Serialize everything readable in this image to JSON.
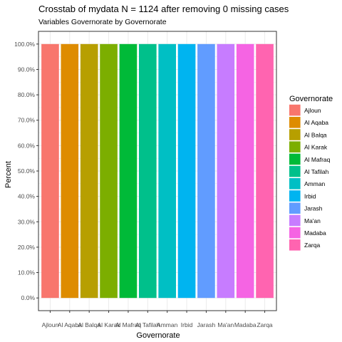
{
  "chart_data": {
    "type": "bar",
    "title": "Crosstab of mydata N = 1124 after removing 0 missing cases",
    "subtitle": "Variables Governorate by Governorate",
    "xlabel": "Governorate",
    "ylabel": "Percent",
    "categories": [
      "Ajloun",
      "Al Aqaba",
      "Al Balqa",
      "Al Karak",
      "Al Mafraq",
      "Al Tafilah",
      "Amman",
      "Irbid",
      "Jarash",
      "Ma'an",
      "Madaba",
      "Zarqa"
    ],
    "values": [
      100,
      100,
      100,
      100,
      100,
      100,
      100,
      100,
      100,
      100,
      100,
      100
    ],
    "ylim": [
      0,
      100
    ],
    "yticks": [
      0,
      10,
      20,
      30,
      40,
      50,
      60,
      70,
      80,
      90,
      100
    ],
    "ytick_labels": [
      "0.0%",
      "10.0%",
      "20.0%",
      "30.0%",
      "40.0%",
      "50.0%",
      "60.0%",
      "70.0%",
      "80.0%",
      "90.0%",
      "100.0%"
    ],
    "grid": true,
    "legend": {
      "title": "Governorate",
      "position": "right",
      "entries": [
        "Ajloun",
        "Al Aqaba",
        "Al Balqa",
        "Al Karak",
        "Al Mafraq",
        "Al Tafilah",
        "Amman",
        "Irbid",
        "Jarash",
        "Ma'an",
        "Madaba",
        "Zarqa"
      ]
    },
    "colors": [
      "#F8766D",
      "#DE8C00",
      "#B79F00",
      "#7CAE00",
      "#00BA38",
      "#00C08B",
      "#00BFC4",
      "#00B4F0",
      "#619CFF",
      "#C77CFF",
      "#F564E3",
      "#FF64B0"
    ],
    "panel_background": "#ffffff",
    "gridline_color": "#ebebeb",
    "panel_border_color": "#333333"
  }
}
